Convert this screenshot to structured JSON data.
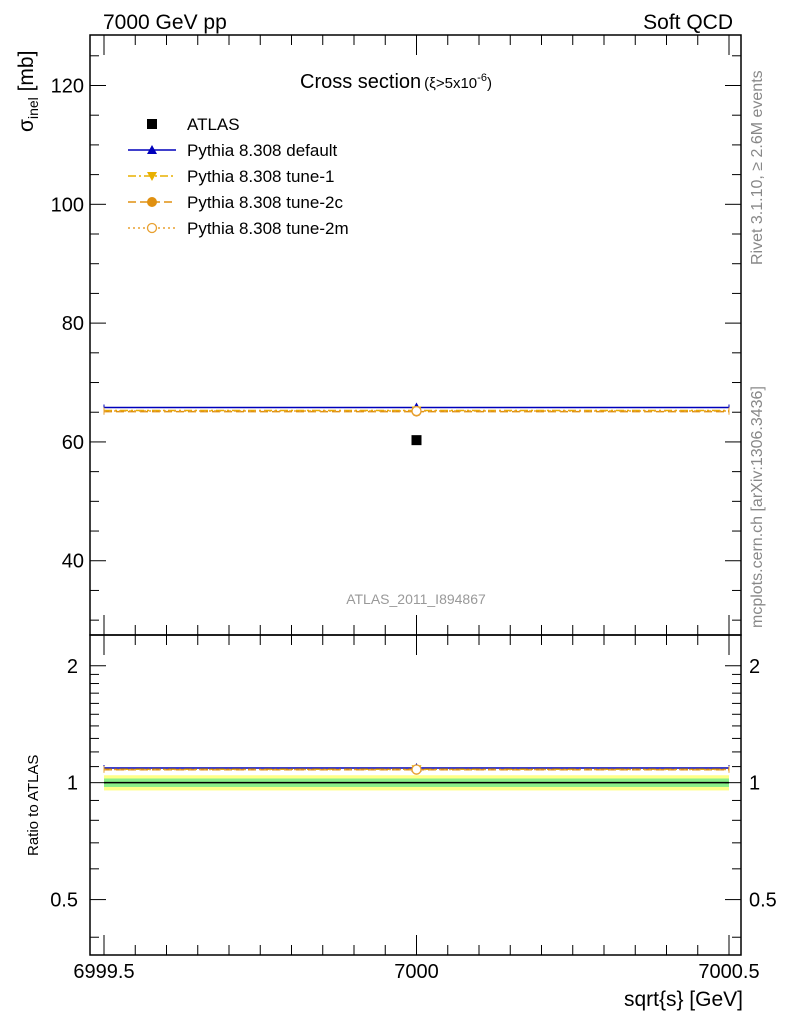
{
  "header": {
    "left": "7000 GeV pp",
    "right": "Soft QCD"
  },
  "side_labels": {
    "rivet": "Rivet 3.1.10, ≥ 2.6M events",
    "mcplots": "mcplots.cern.ch [arXiv:1306.3436]"
  },
  "chart_data": [
    {
      "type": "scatter",
      "panel": "main",
      "title_main": "Cross section",
      "title_cut_prefix": "(ξ>5x10",
      "title_cut_exp": "-6",
      "title_cut_suffix": ")",
      "ylabel_sym": "σ",
      "ylabel_sub": "inel",
      "ylabel_unit": " [mb]",
      "analysis_id": "ATLAS_2011_I894867",
      "xlim": [
        6999.5,
        7000.5
      ],
      "ylim": [
        27.5,
        128.5
      ],
      "yticks": [
        40,
        60,
        80,
        100,
        120
      ],
      "ytick_labels": [
        "40",
        "60",
        "80",
        "100",
        "120"
      ],
      "data": {
        "name": "ATLAS",
        "x": 7000,
        "y": 60.3,
        "color": "#000000"
      },
      "series": [
        {
          "name": "Pythia 8.308 default",
          "x": [
            6999.5,
            7000.5
          ],
          "y": [
            65.8,
            65.8
          ],
          "point": 65.8,
          "color": "#0000bb",
          "marker": "triangle-up",
          "dash": "solid"
        },
        {
          "name": "Pythia 8.308 tune-1",
          "x": [
            6999.5,
            7000.5
          ],
          "y": [
            65.3,
            65.3
          ],
          "point": 65.3,
          "color": "#e8b000",
          "marker": "triangle-down",
          "dash": "dashdot"
        },
        {
          "name": "Pythia 8.308 tune-2c",
          "x": [
            6999.5,
            7000.5
          ],
          "y": [
            65.1,
            65.1
          ],
          "point": 65.1,
          "color": "#e09010",
          "marker": "circle",
          "dash": "dashed"
        },
        {
          "name": "Pythia 8.308 tune-2m",
          "x": [
            6999.5,
            7000.5
          ],
          "y": [
            65.2,
            65.2
          ],
          "point": 65.2,
          "color": "#e8a030",
          "marker": "circle-open",
          "dash": "dotted"
        }
      ],
      "legend_position": "top-left"
    },
    {
      "type": "line",
      "panel": "ratio",
      "ylabel": "Ratio to ATLAS",
      "xlabel": "sqrt{s} [GeV]",
      "xlim": [
        6999.5,
        7000.5
      ],
      "xticks": [
        6999.5,
        7000,
        7000.5
      ],
      "xtick_labels": [
        "6999.5",
        "7000",
        "7000.5"
      ],
      "ylim": [
        0.36,
        2.4
      ],
      "scale": "log",
      "yticks": [
        0.5,
        1,
        2
      ],
      "ytick_labels": [
        "0.5",
        "1",
        "2"
      ],
      "band_inner": [
        0.975,
        1.025
      ],
      "band_outer": [
        0.955,
        1.045
      ],
      "band_inner_color": "#88ee88",
      "band_outer_color": "#ffff88",
      "series": [
        {
          "name": "Pythia 8.308 default",
          "value": 1.091,
          "color": "#0000bb",
          "marker": "triangle-up",
          "dash": "solid"
        },
        {
          "name": "Pythia 8.308 tune-1",
          "value": 1.083,
          "color": "#e8b000",
          "marker": "triangle-down",
          "dash": "dashdot"
        },
        {
          "name": "Pythia 8.308 tune-2c",
          "value": 1.08,
          "color": "#e09010",
          "marker": "circle",
          "dash": "dashed"
        },
        {
          "name": "Pythia 8.308 tune-2m",
          "value": 1.081,
          "color": "#e8a030",
          "marker": "circle-open",
          "dash": "dotted"
        }
      ]
    }
  ]
}
